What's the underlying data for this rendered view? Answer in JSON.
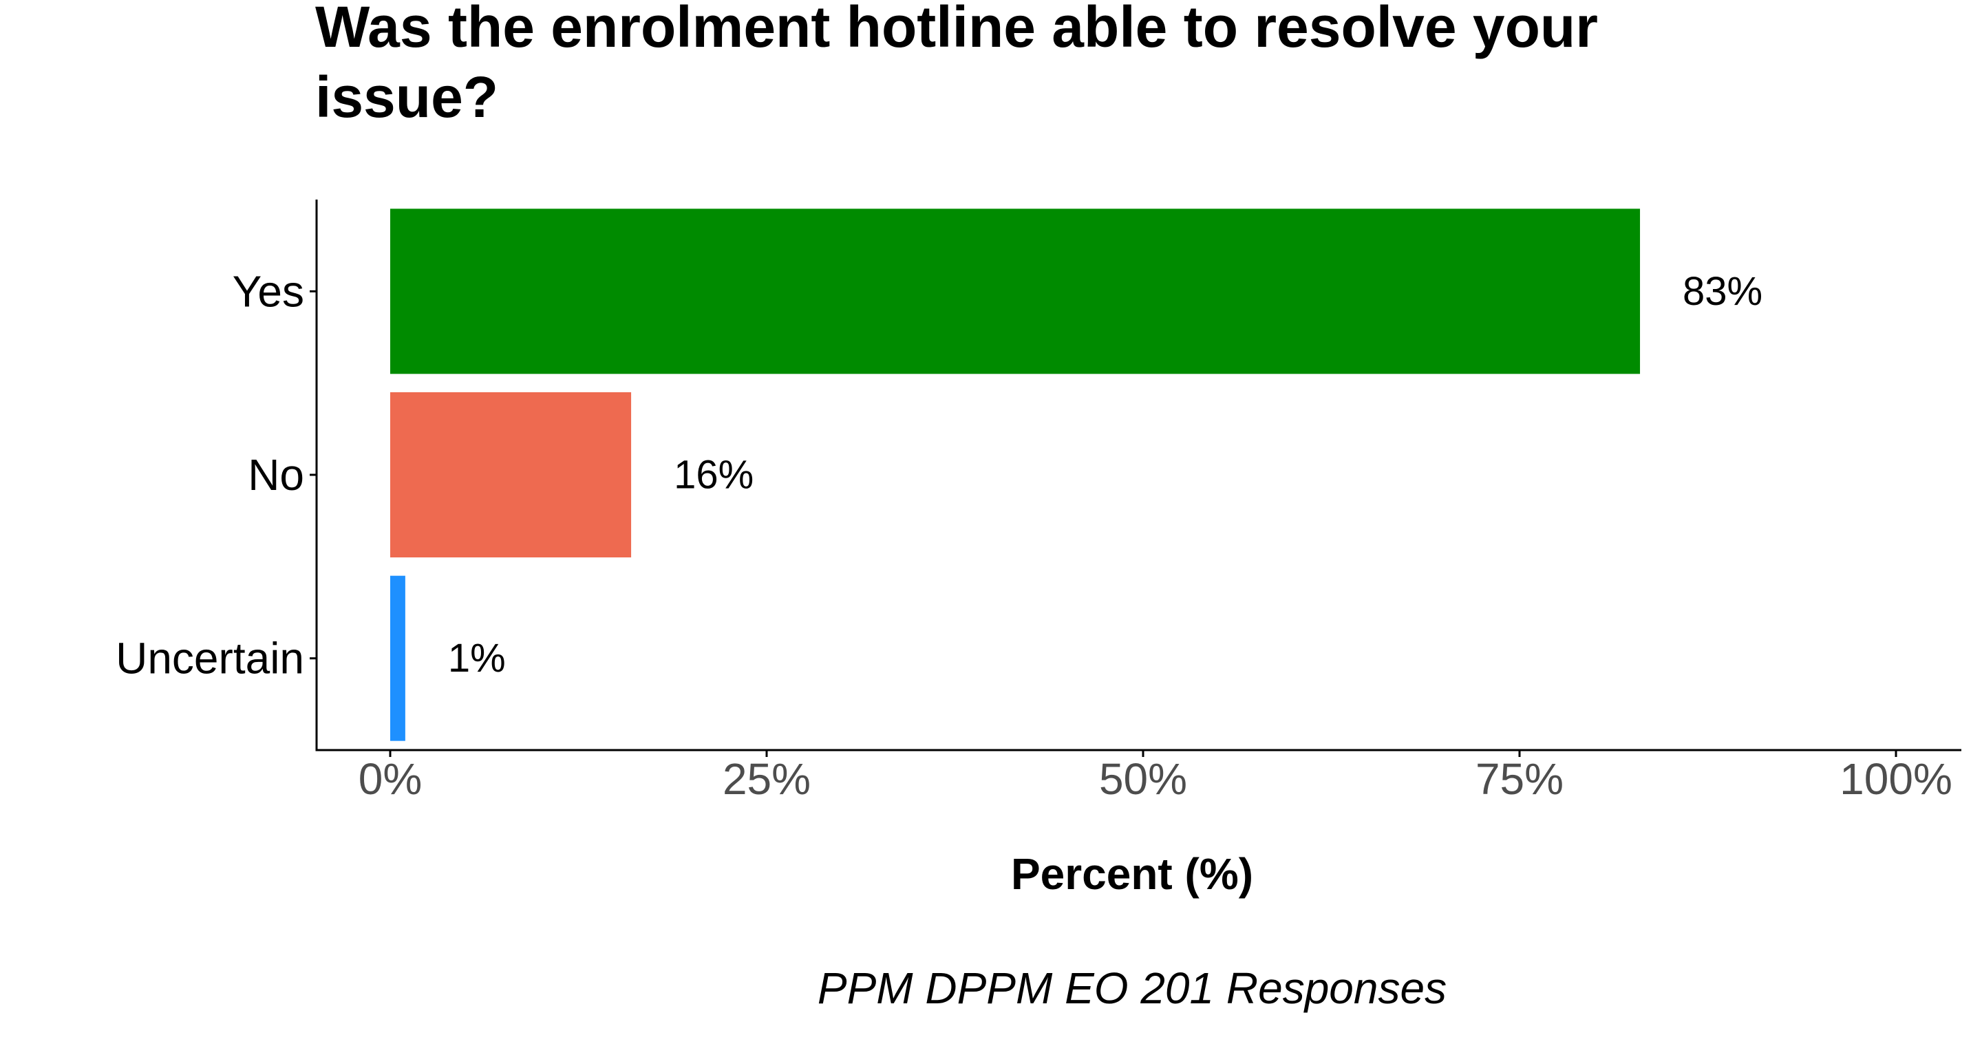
{
  "chart_data": {
    "type": "bar",
    "orientation": "horizontal",
    "title_lines": [
      "Was the enrolment hotline able to resolve your",
      "issue?"
    ],
    "categories": [
      "Yes",
      "No",
      "Uncertain"
    ],
    "values": [
      83,
      16,
      1
    ],
    "data_labels": [
      "83%",
      "16%",
      "1%"
    ],
    "colors": [
      "#008b00",
      "#ee6a50",
      "#1e90ff"
    ],
    "xlabel": "Percent (%)",
    "ylabel": "",
    "xlim": [
      0,
      100
    ],
    "x_ticks": [
      0,
      25,
      50,
      75,
      100
    ],
    "x_tick_labels": [
      "0%",
      "25%",
      "50%",
      "75%",
      "100%"
    ],
    "caption": "PPM DPPM EO 201 Responses",
    "grid": false,
    "legend": "none"
  }
}
